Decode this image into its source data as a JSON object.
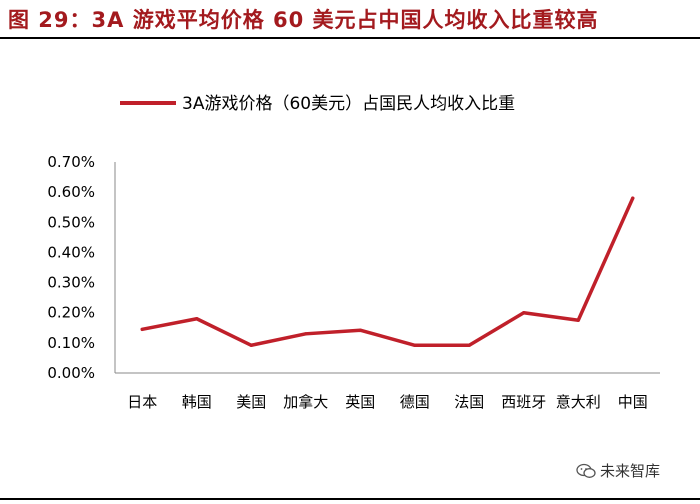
{
  "figure": {
    "title": "图 29：3A 游戏平均价格 60 美元占中国人均收入比重较高",
    "watermark": "未来智库",
    "watermark_icon": "wechat-icon"
  },
  "colors": {
    "series": "#c0202a",
    "title": "#a31a1e"
  },
  "chart_data": {
    "type": "line",
    "categories": [
      "日本",
      "韩国",
      "美国",
      "加拿大",
      "英国",
      "德国",
      "法国",
      "西班牙",
      "意大利",
      "中国"
    ],
    "series": [
      {
        "name": "3A游戏价格（60美元）占国民人均收入比重",
        "values": [
          0.00145,
          0.0018,
          0.00092,
          0.0013,
          0.00142,
          0.00092,
          0.00092,
          0.002,
          0.00175,
          0.0058
        ]
      }
    ],
    "ylim": [
      0,
      0.007
    ],
    "yticks": [
      0,
      0.001,
      0.002,
      0.003,
      0.004,
      0.005,
      0.006,
      0.007
    ],
    "ytick_labels": [
      "0.00%",
      "0.10%",
      "0.20%",
      "0.30%",
      "0.40%",
      "0.50%",
      "0.60%",
      "0.70%"
    ],
    "legend": "top",
    "grid": false
  }
}
